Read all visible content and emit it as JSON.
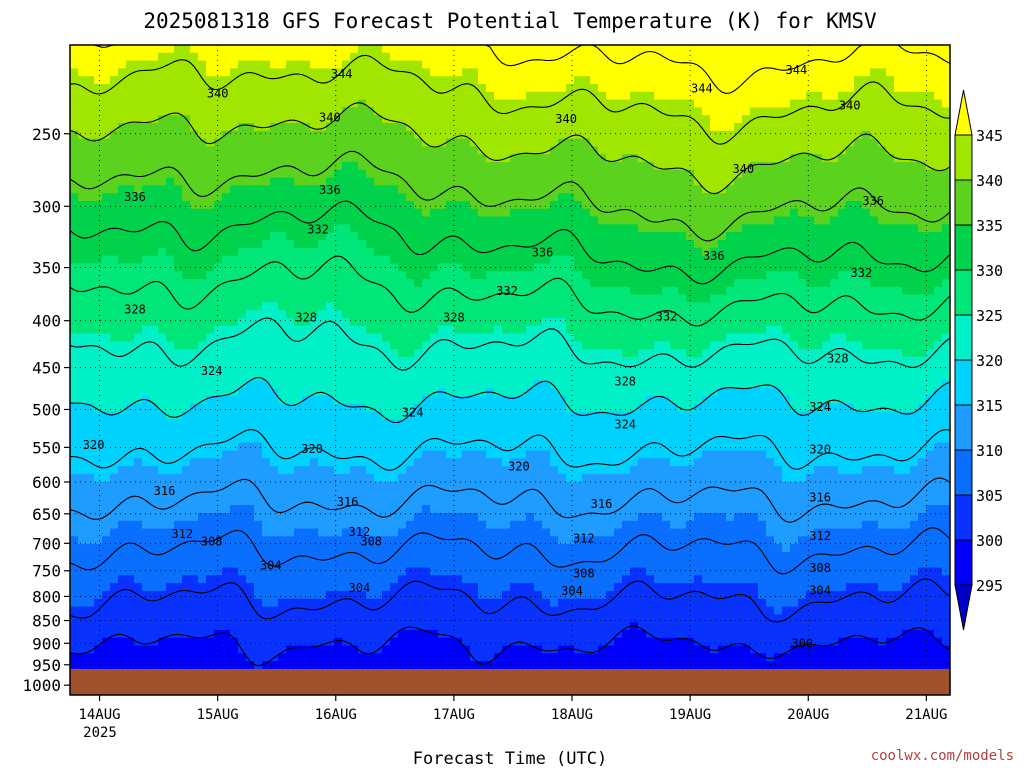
{
  "chart_data": {
    "type": "heatmap",
    "title": "2025081318 GFS Forecast Potential Temperature (K) for KMSV",
    "xlabel": "Forecast Time (UTC)",
    "ylabel": "",
    "x_ticks": [
      "14AUG",
      "15AUG",
      "16AUG",
      "17AUG",
      "18AUG",
      "19AUG",
      "20AUG",
      "21AUG"
    ],
    "x_year": "2025",
    "x_range_days": [
      0,
      7.45
    ],
    "y_ticks": [
      250,
      300,
      350,
      400,
      450,
      500,
      550,
      600,
      650,
      700,
      750,
      800,
      850,
      900,
      950,
      1000
    ],
    "y_range_hpa": [
      200,
      1025
    ],
    "y_scale": "log-pressure",
    "surface_pressure_hpa": 960,
    "colorbar": {
      "levels": [
        295,
        300,
        305,
        310,
        315,
        320,
        325,
        330,
        335,
        340,
        345
      ],
      "colors": [
        "#0000c8",
        "#0000ff",
        "#0a32ff",
        "#0a6eff",
        "#1e9cff",
        "#00d2ff",
        "#00f0c8",
        "#00e678",
        "#00d24b",
        "#5ad21e",
        "#a0e600",
        "#ffff00"
      ],
      "labels": [
        "295",
        "300",
        "305",
        "310",
        "315",
        "320",
        "325",
        "330",
        "335",
        "340",
        "345"
      ]
    },
    "contour_interval_K": 4,
    "contour_labels": [
      {
        "value": "344",
        "day": 2.3,
        "hpa": 215
      },
      {
        "value": "344",
        "day": 5.35,
        "hpa": 223
      },
      {
        "value": "344",
        "day": 6.15,
        "hpa": 213
      },
      {
        "value": "340",
        "day": 1.25,
        "hpa": 226
      },
      {
        "value": "340",
        "day": 2.2,
        "hpa": 240
      },
      {
        "value": "340",
        "day": 4.2,
        "hpa": 241
      },
      {
        "value": "340",
        "day": 6.6,
        "hpa": 233
      },
      {
        "value": "340",
        "day": 5.7,
        "hpa": 273
      },
      {
        "value": "336",
        "day": 0.55,
        "hpa": 293
      },
      {
        "value": "336",
        "day": 2.2,
        "hpa": 288
      },
      {
        "value": "336",
        "day": 4.0,
        "hpa": 337
      },
      {
        "value": "336",
        "day": 5.45,
        "hpa": 340
      },
      {
        "value": "336",
        "day": 6.8,
        "hpa": 296
      },
      {
        "value": "332",
        "day": 2.1,
        "hpa": 318
      },
      {
        "value": "332",
        "day": 3.7,
        "hpa": 371
      },
      {
        "value": "332",
        "day": 5.05,
        "hpa": 396
      },
      {
        "value": "332",
        "day": 6.7,
        "hpa": 355
      },
      {
        "value": "328",
        "day": 0.55,
        "hpa": 389
      },
      {
        "value": "328",
        "day": 2.0,
        "hpa": 397
      },
      {
        "value": "328",
        "day": 3.25,
        "hpa": 397
      },
      {
        "value": "328",
        "day": 4.7,
        "hpa": 466
      },
      {
        "value": "328",
        "day": 6.5,
        "hpa": 440
      },
      {
        "value": "324",
        "day": 1.2,
        "hpa": 454
      },
      {
        "value": "324",
        "day": 2.9,
        "hpa": 504
      },
      {
        "value": "324",
        "day": 4.7,
        "hpa": 519
      },
      {
        "value": "324",
        "day": 6.35,
        "hpa": 497
      },
      {
        "value": "320",
        "day": 0.2,
        "hpa": 547
      },
      {
        "value": "320",
        "day": 2.05,
        "hpa": 552
      },
      {
        "value": "320",
        "day": 3.8,
        "hpa": 577
      },
      {
        "value": "320",
        "day": 6.35,
        "hpa": 553
      },
      {
        "value": "316",
        "day": 0.8,
        "hpa": 614
      },
      {
        "value": "316",
        "day": 2.35,
        "hpa": 631
      },
      {
        "value": "316",
        "day": 4.5,
        "hpa": 634
      },
      {
        "value": "316",
        "day": 6.35,
        "hpa": 624
      },
      {
        "value": "312",
        "day": 0.95,
        "hpa": 684
      },
      {
        "value": "312",
        "day": 2.45,
        "hpa": 680
      },
      {
        "value": "312",
        "day": 4.35,
        "hpa": 692
      },
      {
        "value": "312",
        "day": 6.35,
        "hpa": 687
      },
      {
        "value": "308",
        "day": 1.2,
        "hpa": 697
      },
      {
        "value": "308",
        "day": 2.55,
        "hpa": 697
      },
      {
        "value": "308",
        "day": 4.35,
        "hpa": 755
      },
      {
        "value": "308",
        "day": 6.35,
        "hpa": 745
      },
      {
        "value": "304",
        "day": 1.7,
        "hpa": 740
      },
      {
        "value": "304",
        "day": 2.45,
        "hpa": 783
      },
      {
        "value": "304",
        "day": 4.25,
        "hpa": 789
      },
      {
        "value": "304",
        "day": 6.35,
        "hpa": 788
      },
      {
        "value": "300",
        "day": 6.2,
        "hpa": 900
      }
    ]
  },
  "footer": {
    "credit": "coolwx.com/models"
  }
}
